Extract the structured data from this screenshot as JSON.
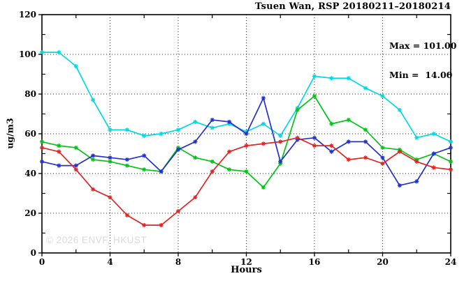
{
  "header": {
    "title": "Tsuen Wan, RSP 20180211–20180214"
  },
  "chart_data": {
    "type": "line",
    "title": "Tsuen Wan, RSP 20180211–20180214",
    "xlabel": "Hours",
    "ylabel": "ug/m3",
    "watermark": "© 2026 ENVF, HKUST",
    "xlim": [
      0,
      24
    ],
    "ylim": [
      0,
      120
    ],
    "xticks": [
      0,
      4,
      8,
      12,
      16,
      20,
      24
    ],
    "xticks_minor": [
      2,
      6,
      10,
      14,
      18,
      22
    ],
    "yticks": [
      0,
      20,
      40,
      60,
      80,
      100,
      120
    ],
    "yticks_minor": [
      10,
      30,
      50,
      70,
      90,
      110
    ],
    "grid_x": [
      4,
      8,
      12,
      16,
      20
    ],
    "grid_y": [
      20,
      40,
      60,
      80,
      100
    ],
    "grid_on": true,
    "legend_position": "none",
    "x": [
      0,
      1,
      2,
      3,
      4,
      5,
      6,
      7,
      8,
      9,
      10,
      11,
      12,
      13,
      14,
      15,
      16,
      17,
      18,
      19,
      20,
      21,
      22,
      23,
      24
    ],
    "series": [
      {
        "name": "series-cyan",
        "color": "#00d8e4",
        "values": [
          101,
          101,
          94,
          77,
          62,
          62,
          59,
          60,
          62,
          66,
          63,
          65,
          61,
          65,
          59,
          73,
          89,
          88,
          88,
          83,
          79,
          72,
          58,
          60,
          56
        ]
      },
      {
        "name": "series-green",
        "color": "#00c414",
        "values": [
          56,
          54,
          53,
          47,
          46,
          44,
          42,
          41,
          53,
          48,
          46,
          42,
          41,
          33,
          45,
          72,
          79,
          65,
          67,
          62,
          53,
          52,
          47,
          50,
          46
        ]
      },
      {
        "name": "series-blue",
        "color": "#2230cc",
        "values": [
          46,
          44,
          44,
          49,
          48,
          47,
          49,
          41,
          52,
          56,
          67,
          66,
          60,
          78,
          46,
          57,
          58,
          51,
          56,
          56,
          48,
          34,
          36,
          50,
          53
        ]
      },
      {
        "name": "series-red",
        "color": "#e02424",
        "values": [
          53,
          51,
          42,
          32,
          28,
          19,
          14,
          14,
          21,
          28,
          41,
          51,
          54,
          55,
          56,
          58,
          54,
          54,
          47,
          48,
          45,
          51,
          46,
          43,
          42
        ]
      }
    ],
    "annotations": {
      "max_label": "Max = 101.00",
      "min_label": "Min =  14.00"
    }
  }
}
